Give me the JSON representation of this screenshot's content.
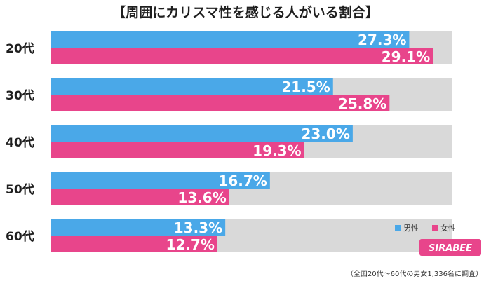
{
  "chart_data": {
    "type": "bar",
    "orientation": "horizontal",
    "title": "【周囲にカリスマ性を感じる人がいる割合】",
    "categories": [
      "20代",
      "30代",
      "40代",
      "50代",
      "60代"
    ],
    "series": [
      {
        "name": "男性",
        "values": [
          27.3,
          21.5,
          23.0,
          16.7,
          13.3
        ],
        "color": "#4aa8e8"
      },
      {
        "name": "女性",
        "values": [
          29.1,
          25.8,
          19.3,
          13.6,
          12.7
        ],
        "color": "#e8458b"
      }
    ],
    "value_labels": {
      "男性": [
        "27.3%",
        "21.5%",
        "23.0%",
        "16.7%",
        "13.3%"
      ],
      "女性": [
        "29.1%",
        "25.8%",
        "19.3%",
        "13.6%",
        "12.7%"
      ]
    },
    "xlim": [
      0,
      30
    ],
    "grid": false,
    "legend_position": "bottom-right"
  },
  "footnote": "（全国20代～60代の男女1,336名に調査）",
  "logo_text": "SIRABEE",
  "colors": {
    "background": "#ffffff",
    "band": "#d9d9d9",
    "male": "#4aa8e8",
    "female": "#e8458b"
  }
}
